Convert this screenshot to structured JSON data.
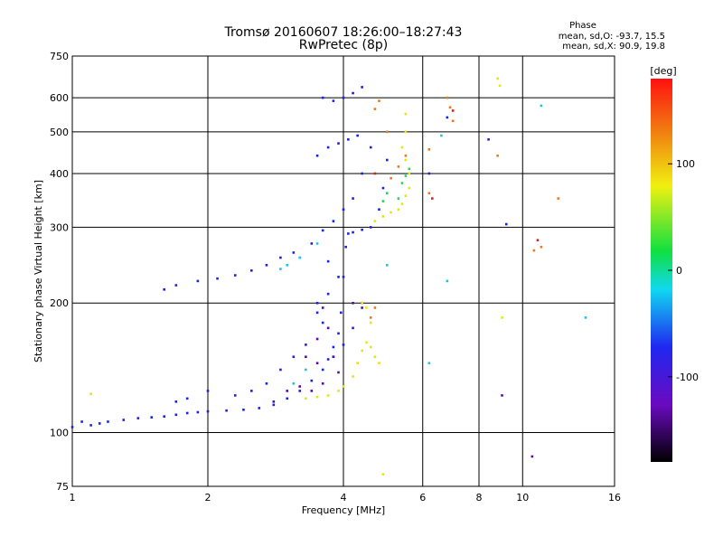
{
  "chart_data": {
    "type": "scatter",
    "title": "Tromsø 20160607 18:26:00–18:27:43",
    "subtitle": "RwPretec (8p)",
    "xlabel": "Frequency [MHz]",
    "ylabel": "Stationary phase Virtual Height [km]",
    "x_scale": "log",
    "y_scale": "log",
    "xlim": [
      1,
      16
    ],
    "ylim": [
      75,
      750
    ],
    "x_ticks": [
      "1",
      "2",
      "4",
      "6",
      "8",
      "10",
      "16"
    ],
    "y_ticks": [
      "75",
      "100",
      "200",
      "300",
      "400",
      "500",
      "600",
      "750"
    ],
    "grid": true,
    "stats": {
      "heading": "Phase",
      "line_O": "mean, sd,O: -93.7, 15.5",
      "line_X": "mean, sd,X: 90.9, 19.8"
    },
    "colorbar": {
      "label": "[deg]",
      "range": [
        -180,
        180
      ],
      "ticks": [
        "100",
        "0",
        "-100"
      ],
      "tick_values": [
        100,
        0,
        -100
      ]
    },
    "series": [
      {
        "color": "#1a22e8",
        "points": [
          [
            1.0,
            103
          ],
          [
            1.05,
            106
          ],
          [
            1.1,
            104
          ],
          [
            1.15,
            105
          ],
          [
            1.2,
            106
          ],
          [
            1.3,
            107
          ],
          [
            1.4,
            108
          ],
          [
            1.5,
            108.5
          ],
          [
            1.6,
            109
          ],
          [
            1.7,
            110
          ],
          [
            1.8,
            111
          ],
          [
            1.9,
            111.5
          ],
          [
            2.0,
            112
          ],
          [
            2.2,
            112.5
          ],
          [
            2.4,
            113
          ],
          [
            2.6,
            114
          ],
          [
            2.8,
            116
          ],
          [
            3.0,
            120
          ],
          [
            3.2,
            125
          ],
          [
            3.4,
            132
          ],
          [
            3.6,
            140
          ],
          [
            3.7,
            148
          ],
          [
            3.8,
            158
          ],
          [
            3.9,
            170
          ],
          [
            3.95,
            190
          ],
          [
            4.0,
            230
          ],
          [
            4.05,
            270
          ],
          [
            4.1,
            290
          ],
          [
            4.2,
            292
          ],
          [
            4.4,
            296
          ],
          [
            4.6,
            300
          ],
          [
            4.8,
            330
          ],
          [
            4.9,
            370
          ],
          [
            5.0,
            430
          ],
          [
            1.6,
            215
          ],
          [
            1.7,
            220
          ],
          [
            1.9,
            225
          ],
          [
            2.1,
            228
          ],
          [
            2.3,
            232
          ],
          [
            2.5,
            238
          ],
          [
            2.7,
            245
          ],
          [
            2.9,
            255
          ],
          [
            3.1,
            262
          ],
          [
            3.4,
            275
          ],
          [
            3.6,
            295
          ],
          [
            3.8,
            310
          ],
          [
            4.0,
            330
          ],
          [
            4.2,
            350
          ],
          [
            4.4,
            400
          ],
          [
            4.6,
            460
          ],
          [
            3.5,
            440
          ],
          [
            3.7,
            460
          ],
          [
            3.9,
            470
          ],
          [
            4.1,
            480
          ],
          [
            4.3,
            490
          ],
          [
            3.6,
            600
          ],
          [
            3.8,
            590
          ],
          [
            4.0,
            600
          ],
          [
            4.2,
            615
          ],
          [
            4.4,
            635
          ],
          [
            3.7,
            250
          ],
          [
            3.5,
            200
          ],
          [
            3.6,
            180
          ],
          [
            3.3,
            160
          ],
          [
            3.1,
            150
          ],
          [
            2.9,
            140
          ],
          [
            2.7,
            130
          ],
          [
            2.5,
            125
          ],
          [
            2.3,
            122
          ],
          [
            2.0,
            125
          ],
          [
            1.8,
            120
          ],
          [
            1.7,
            118
          ],
          [
            4.4,
            200
          ],
          [
            4.2,
            175
          ],
          [
            4.0,
            160
          ],
          [
            3.8,
            150
          ],
          [
            3.5,
            190
          ],
          [
            3.7,
            210
          ],
          [
            3.9,
            230
          ],
          [
            6.2,
            400
          ],
          [
            6.8,
            540
          ],
          [
            8.4,
            480
          ],
          [
            9.2,
            305
          ]
        ]
      },
      {
        "color": "#5a0aa8",
        "points": [
          [
            3.4,
            125
          ],
          [
            3.6,
            130
          ],
          [
            3.8,
            150
          ],
          [
            3.7,
            175
          ],
          [
            3.6,
            195
          ],
          [
            3.5,
            165
          ],
          [
            3.3,
            150
          ],
          [
            3.2,
            128
          ],
          [
            3.0,
            125
          ],
          [
            2.8,
            118
          ],
          [
            4.2,
            200
          ],
          [
            4.4,
            195
          ],
          [
            3.9,
            138
          ],
          [
            3.5,
            145
          ],
          [
            10.5,
            88
          ],
          [
            9.0,
            122
          ]
        ]
      },
      {
        "color": "#e6e60f",
        "points": [
          [
            3.3,
            120
          ],
          [
            3.5,
            121
          ],
          [
            3.7,
            122
          ],
          [
            3.9,
            125
          ],
          [
            4.0,
            128
          ],
          [
            4.2,
            135
          ],
          [
            4.3,
            145
          ],
          [
            4.4,
            155
          ],
          [
            4.5,
            162
          ],
          [
            4.6,
            158
          ],
          [
            4.7,
            150
          ],
          [
            4.8,
            145
          ],
          [
            4.6,
            180
          ],
          [
            4.5,
            195
          ],
          [
            4.4,
            200
          ],
          [
            4.7,
            310
          ],
          [
            4.9,
            318
          ],
          [
            5.1,
            325
          ],
          [
            5.3,
            330
          ],
          [
            5.4,
            340
          ],
          [
            5.5,
            355
          ],
          [
            5.6,
            370
          ],
          [
            5.6,
            400
          ],
          [
            5.5,
            430
          ],
          [
            5.4,
            460
          ],
          [
            5.5,
            500
          ],
          [
            5.5,
            550
          ],
          [
            4.9,
            80
          ],
          [
            1.1,
            123
          ],
          [
            9.0,
            185
          ],
          [
            8.8,
            665
          ],
          [
            8.9,
            640
          ]
        ]
      },
      {
        "color": "#f07818",
        "points": [
          [
            4.6,
            185
          ],
          [
            4.7,
            195
          ],
          [
            5.1,
            390
          ],
          [
            5.3,
            415
          ],
          [
            5.5,
            440
          ],
          [
            6.2,
            455
          ],
          [
            6.8,
            600
          ],
          [
            6.9,
            570
          ],
          [
            7.0,
            530
          ],
          [
            8.8,
            440
          ],
          [
            10.6,
            265
          ],
          [
            11.0,
            270
          ],
          [
            12.0,
            350
          ],
          [
            4.7,
            565
          ],
          [
            4.8,
            590
          ],
          [
            5.0,
            500
          ],
          [
            6.2,
            360
          ]
        ]
      },
      {
        "color": "#15c8e0",
        "points": [
          [
            2.9,
            240
          ],
          [
            3.0,
            245
          ],
          [
            3.2,
            255
          ],
          [
            3.5,
            275
          ],
          [
            3.3,
            140
          ],
          [
            3.1,
            130
          ],
          [
            6.2,
            145
          ],
          [
            6.8,
            225
          ],
          [
            5.0,
            245
          ],
          [
            11.0,
            575
          ],
          [
            13.8,
            185
          ],
          [
            6.6,
            490
          ]
        ]
      },
      {
        "color": "#25d45a",
        "points": [
          [
            5.3,
            350
          ],
          [
            5.4,
            380
          ],
          [
            5.5,
            395
          ],
          [
            5.6,
            410
          ],
          [
            4.9,
            345
          ],
          [
            5.0,
            360
          ]
        ]
      },
      {
        "color": "#d82020",
        "points": [
          [
            6.3,
            350
          ],
          [
            7.0,
            560
          ],
          [
            4.7,
            400
          ],
          [
            10.8,
            280
          ]
        ]
      }
    ]
  }
}
